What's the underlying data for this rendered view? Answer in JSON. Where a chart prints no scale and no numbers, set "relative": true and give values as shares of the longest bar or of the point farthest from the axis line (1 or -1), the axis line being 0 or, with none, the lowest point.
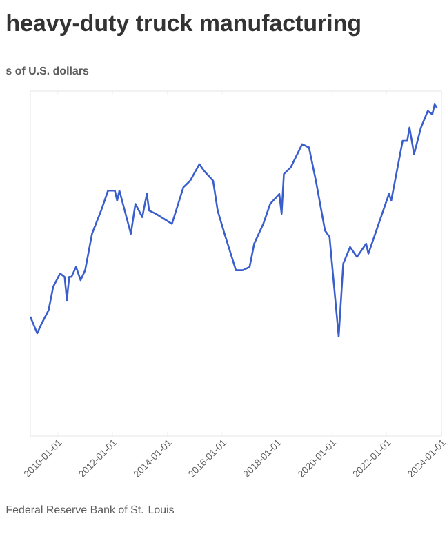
{
  "chart_data": {
    "type": "line",
    "title": "heavy-duty truck manufacturing",
    "subtitle": "s of U.S. dollars",
    "annotations": [
      "Federal Reserve Bank of St. Louis"
    ],
    "relative": true,
    "xlim": [
      "2009-01-01",
      "2024-01-01"
    ],
    "xticks": [
      "2010-01-01",
      "2012-01-01",
      "2014-01-01",
      "2016-01-01",
      "2018-01-01",
      "2020-01-01",
      "2022-01-01",
      "2024-01-01"
    ],
    "x": [
      "2009-01",
      "2009-04",
      "2009-06",
      "2009-09",
      "2009-11",
      "2010-02",
      "2010-04",
      "2010-05",
      "2010-06",
      "2010-07",
      "2010-09",
      "2010-11",
      "2011-01",
      "2011-04",
      "2011-08",
      "2011-11",
      "2012-02",
      "2012-03",
      "2012-04",
      "2012-09",
      "2012-11",
      "2013-02",
      "2013-04",
      "2013-05",
      "2013-08",
      "2014-03",
      "2014-08",
      "2014-11",
      "2015-03",
      "2015-05",
      "2015-09",
      "2015-11",
      "2016-02",
      "2016-07",
      "2016-10",
      "2017-01",
      "2017-03",
      "2017-07",
      "2017-10",
      "2018-02",
      "2018-03",
      "2018-04",
      "2018-07",
      "2018-12",
      "2019-03",
      "2019-06",
      "2019-10",
      "2019-12",
      "2020-04",
      "2020-06",
      "2020-09",
      "2020-12",
      "2021-04",
      "2021-05",
      "2021-08",
      "2021-11",
      "2022-02",
      "2022-03",
      "2022-08",
      "2022-10",
      "2022-11",
      "2023-01",
      "2023-04",
      "2023-07",
      "2023-09",
      "2023-10",
      "2023-11"
    ],
    "series": [
      {
        "color": "#3a5fcd",
        "values": [
          0.36,
          0.31,
          0.34,
          0.38,
          0.45,
          0.49,
          0.48,
          0.41,
          0.48,
          0.48,
          0.51,
          0.47,
          0.5,
          0.61,
          0.68,
          0.74,
          0.74,
          0.71,
          0.74,
          0.61,
          0.7,
          0.66,
          0.73,
          0.68,
          0.67,
          0.64,
          0.75,
          0.77,
          0.82,
          0.8,
          0.77,
          0.68,
          0.61,
          0.5,
          0.5,
          0.51,
          0.58,
          0.64,
          0.7,
          0.73,
          0.67,
          0.79,
          0.81,
          0.88,
          0.87,
          0.77,
          0.62,
          0.6,
          0.3,
          0.52,
          0.57,
          0.54,
          0.58,
          0.55,
          0.61,
          0.67,
          0.73,
          0.71,
          0.89,
          0.89,
          0.93,
          0.85,
          0.93,
          0.98,
          0.97,
          1.0,
          0.99
        ]
      }
    ]
  }
}
